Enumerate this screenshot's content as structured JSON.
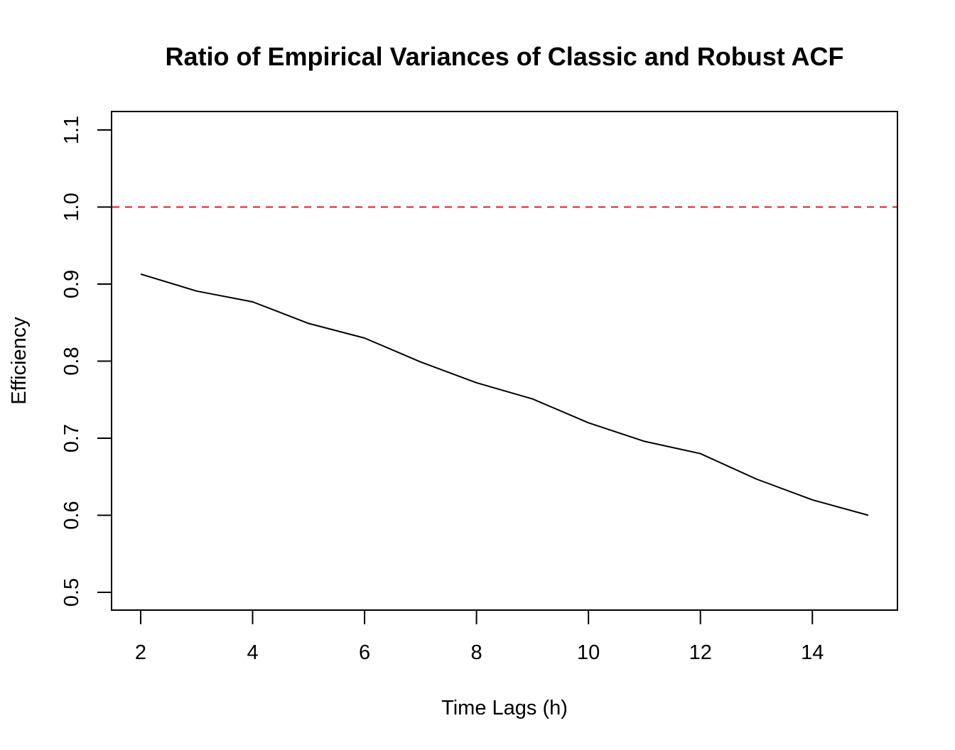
{
  "chart_data": {
    "type": "line",
    "title": "Ratio of Empirical Variances of Classic and Robust ACF",
    "xlabel": "Time Lags (h)",
    "ylabel": "Efficiency",
    "xlim": [
      1.48,
      15.52
    ],
    "ylim": [
      0.477,
      1.124
    ],
    "x_ticks": [
      2,
      4,
      6,
      8,
      10,
      12,
      14
    ],
    "y_ticks": [
      0.5,
      0.6,
      0.7,
      0.8,
      0.9,
      1.0,
      1.1
    ],
    "x_tick_labels": [
      "2",
      "4",
      "6",
      "8",
      "10",
      "12",
      "14"
    ],
    "y_tick_labels": [
      "0.5",
      "0.6",
      "0.7",
      "0.8",
      "0.9",
      "1.0",
      "1.1"
    ],
    "grid": false,
    "series": [
      {
        "color": "#000000",
        "line_style": "solid",
        "x": [
          2,
          3,
          4,
          5,
          6,
          7,
          8,
          9,
          10,
          11,
          12,
          13,
          14,
          15
        ],
        "y": [
          0.913,
          0.891,
          0.877,
          0.849,
          0.83,
          0.799,
          0.772,
          0.751,
          0.72,
          0.696,
          0.68,
          0.647,
          0.62,
          0.6
        ]
      }
    ],
    "reference_lines": [
      {
        "orientation": "horizontal",
        "y": 1.0,
        "color": "#e41a1c",
        "line_style": "dashed"
      }
    ]
  }
}
